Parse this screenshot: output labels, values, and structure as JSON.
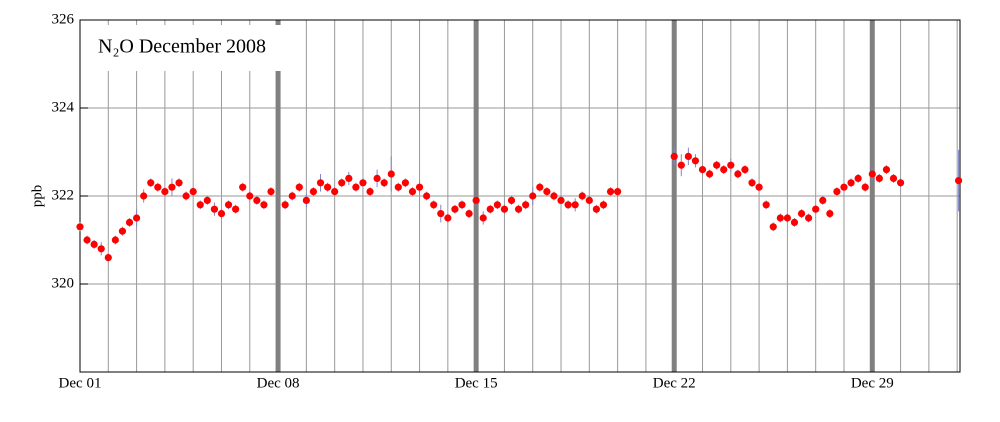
{
  "chart_data": {
    "type": "scatter",
    "title": "N₂O December 2008",
    "ylabel": "ppb",
    "color": "#ff0000",
    "error_color": "#7f86c8",
    "xlim": [
      1,
      32.1
    ],
    "ylim": [
      318,
      326
    ],
    "xticks": [
      {
        "value": 1,
        "label": "Dec 01"
      },
      {
        "value": 8,
        "label": "Dec 08"
      },
      {
        "value": 15,
        "label": "Dec 15"
      },
      {
        "value": 22,
        "label": "Dec 22"
      },
      {
        "value": 29,
        "label": "Dec 29"
      }
    ],
    "xgrid": [
      1,
      2,
      3,
      4,
      5,
      6,
      7,
      8,
      9,
      10,
      11,
      12,
      13,
      14,
      15,
      16,
      17,
      18,
      19,
      20,
      21,
      22,
      23,
      24,
      25,
      26,
      27,
      28,
      29,
      30,
      31,
      32
    ],
    "yticks": [
      320,
      322,
      324,
      326
    ],
    "grid": true,
    "x": [
      1.0,
      1.25,
      1.5,
      1.75,
      2.0,
      2.25,
      2.5,
      2.75,
      3.0,
      3.25,
      3.5,
      3.75,
      4.0,
      4.25,
      4.5,
      4.75,
      5.0,
      5.25,
      5.5,
      5.75,
      6.0,
      6.25,
      6.5,
      6.75,
      7.0,
      7.25,
      7.5,
      7.75,
      8.25,
      8.5,
      8.75,
      9.0,
      9.25,
      9.5,
      9.75,
      10.0,
      10.25,
      10.5,
      10.75,
      11.0,
      11.25,
      11.5,
      11.75,
      12.0,
      12.25,
      12.5,
      12.75,
      13.0,
      13.25,
      13.5,
      13.75,
      14.0,
      14.25,
      14.5,
      14.75,
      15.0,
      15.25,
      15.5,
      15.75,
      16.0,
      16.25,
      16.5,
      16.75,
      17.0,
      17.25,
      17.5,
      17.75,
      18.0,
      18.25,
      18.5,
      18.75,
      19.0,
      19.25,
      19.5,
      19.75,
      20.0,
      22.0,
      22.25,
      22.5,
      22.75,
      23.0,
      23.25,
      23.5,
      23.75,
      24.0,
      24.25,
      24.5,
      24.75,
      25.0,
      25.25,
      25.5,
      25.75,
      26.0,
      26.25,
      26.5,
      26.75,
      27.0,
      27.25,
      27.5,
      27.75,
      28.0,
      28.25,
      28.5,
      28.75,
      29.0,
      29.25,
      29.5,
      29.75,
      30.0,
      32.05
    ],
    "values": [
      321.3,
      321.0,
      320.9,
      320.8,
      320.6,
      321.0,
      321.2,
      321.4,
      321.5,
      322.0,
      322.3,
      322.2,
      322.1,
      322.2,
      322.3,
      322.0,
      322.1,
      321.8,
      321.9,
      321.7,
      321.6,
      321.8,
      321.7,
      322.2,
      322.0,
      321.9,
      321.8,
      322.1,
      321.8,
      322.0,
      322.2,
      321.9,
      322.1,
      322.3,
      322.2,
      322.1,
      322.3,
      322.4,
      322.2,
      322.3,
      322.1,
      322.4,
      322.3,
      322.5,
      322.2,
      322.3,
      322.1,
      322.2,
      322.0,
      321.8,
      321.6,
      321.5,
      321.7,
      321.8,
      321.6,
      321.9,
      321.5,
      321.7,
      321.8,
      321.7,
      321.9,
      321.7,
      321.8,
      322.0,
      322.2,
      322.1,
      322.0,
      321.9,
      321.8,
      321.8,
      322.0,
      321.9,
      321.7,
      321.8,
      322.1,
      322.1,
      322.9,
      322.7,
      322.9,
      322.8,
      322.6,
      322.5,
      322.7,
      322.6,
      322.7,
      322.5,
      322.6,
      322.3,
      322.2,
      321.8,
      321.3,
      321.5,
      321.5,
      321.4,
      321.6,
      321.5,
      321.7,
      321.9,
      321.6,
      322.1,
      322.2,
      322.3,
      322.4,
      322.2,
      322.5,
      322.4,
      322.6,
      322.4,
      322.3,
      322.35
    ],
    "errors": [
      0.1,
      0.1,
      0.1,
      0.15,
      0.1,
      0.1,
      0.1,
      0.1,
      0.2,
      0.15,
      0.1,
      0.1,
      0.1,
      0.2,
      0.1,
      0.1,
      0.1,
      0.1,
      0.1,
      0.15,
      0.1,
      0.1,
      0.1,
      0.1,
      0.1,
      0.1,
      0.1,
      0.1,
      0.1,
      0.1,
      0.1,
      0.15,
      0.1,
      0.2,
      0.1,
      0.1,
      0.1,
      0.15,
      0.1,
      0.1,
      0.1,
      0.2,
      0.1,
      0.4,
      0.1,
      0.1,
      0.1,
      0.15,
      0.1,
      0.1,
      0.2,
      0.1,
      0.1,
      0.1,
      0.1,
      0.1,
      0.15,
      0.1,
      0.1,
      0.1,
      0.1,
      0.1,
      0.1,
      0.2,
      0.1,
      0.1,
      0.1,
      0.1,
      0.1,
      0.15,
      0.1,
      0.1,
      0.1,
      0.1,
      0.1,
      0.1,
      0.2,
      0.25,
      0.2,
      0.15,
      0.1,
      0.1,
      0.1,
      0.1,
      0.15,
      0.1,
      0.1,
      0.1,
      0.1,
      0.1,
      0.1,
      0.1,
      0.1,
      0.1,
      0.1,
      0.1,
      0.1,
      0.1,
      0.1,
      0.1,
      0.1,
      0.1,
      0.1,
      0.1,
      0.15,
      0.1,
      0.1,
      0.1,
      0.1,
      0.7
    ]
  }
}
